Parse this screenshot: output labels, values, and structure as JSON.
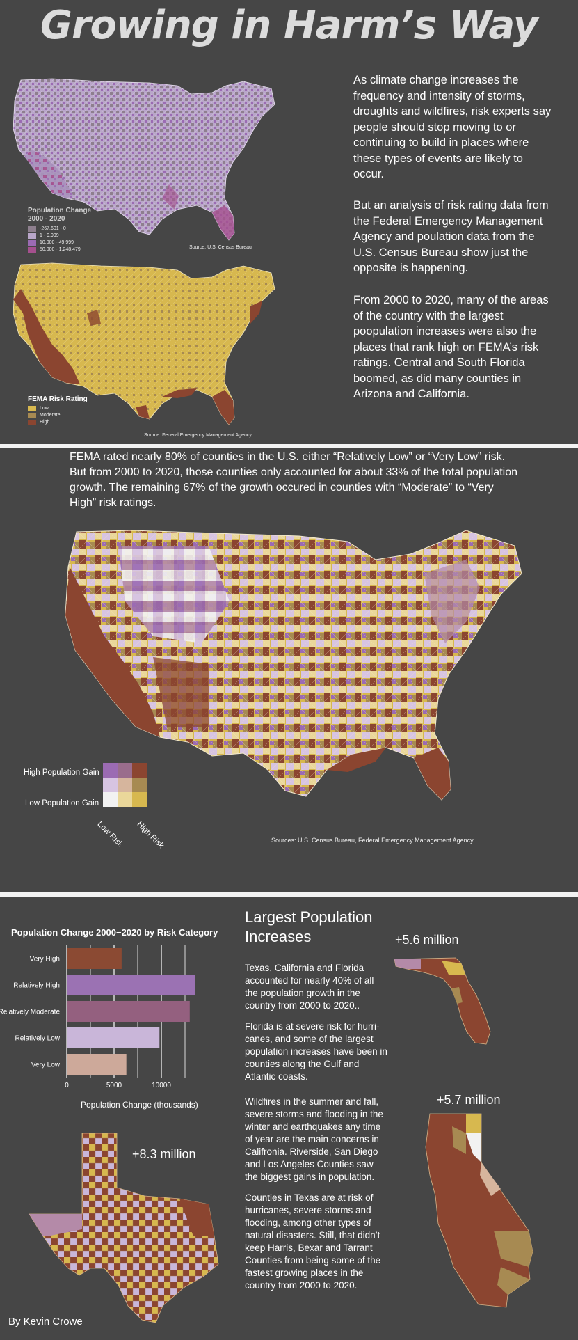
{
  "title": "Growing in Harm’s Way",
  "intro": {
    "p1": "As climate change increases the frequency and intensity of storms, droughts and wildfires, risk experts say people should stop moving to or continuing to build in places where these types of events are likely to occur.",
    "p2": "But an analysis of risk rating data from the Federal Emergency Management Agency and poulation data from the U.S. Census Bureau show just the opposite is happening.",
    "p3": "From 2000 to 2020, many of the areas of the country with the largest poopulation increases were also the places that rank high on FEMA’s risk ratings. Central and South Florida boomed, as did many counties in Arizona and California."
  },
  "map1": {
    "legend_title": "Population Change\n2000 - 2020",
    "legend_items": [
      {
        "label": "-267,601 - 0",
        "color": "#8e7f8e"
      },
      {
        "label": "1 - 9,999",
        "color": "#b9a6c9"
      },
      {
        "label": "10,000 - 49,999",
        "color": "#9b6bb3"
      },
      {
        "label": "50,000 - 1,248,479",
        "color": "#a5508e"
      }
    ],
    "source": "Source: U.S. Census Bureau"
  },
  "map2": {
    "legend_title": "FEMA Risk Rating",
    "legend_items": [
      {
        "label": "Low",
        "color": "#d7b84f"
      },
      {
        "label": "Moderate",
        "color": "#a78a52"
      },
      {
        "label": "High",
        "color": "#8b4530"
      }
    ],
    "source": "Source: Federal Emergency Management Agency"
  },
  "section2": {
    "text": "FEMA rated nearly 80% of counties in the U.S. either “Relatively Low” or “Very Low” risk. But from 2000 to 2020, those counties only accounted for about 33% of the total population growth. The remaining 67% of the growth occured in counties with “Moderate” to “Very High” risk ratings.",
    "legend_high": "High Population Gain",
    "legend_low": "Low Population Gain",
    "axis_low": "Low Risk",
    "axis_high": "High Risk",
    "bivariate_colors": [
      "#9b6bb3",
      "#9a6d8c",
      "#8b4530",
      "#d7c4e2",
      "#d6b59d",
      "#a78a52",
      "#f2f2f2",
      "#ead79a",
      "#d7b84f"
    ],
    "source": "Sources: U.S. Census Bureau, Federal Emergency Management Agency"
  },
  "section3": {
    "heading": "Largest Population Increases",
    "p1": "Texas, California and Florida accounted for nearly 40% of all the population growth in the country from 2000 to 2020..",
    "p2": "Florida is at severe risk for hurri-canes, and some of the largest population increases have been in counties along the Gulf and Atlantic coasts.",
    "p3": "Wildfires in the summer and fall, severe storms and flooding in the winter and earthquakes any time of year are the main concerns in Califronia. Riverside, San Diego and Los Angeles Counties saw the biggest gains in population.",
    "p4": "Counties in Texas are at risk of hurricanes, severe storms and flooding, among other types of natural disasters. Still, that didn’t keep Harris, Bexar and Tarrant Counties from being some of the fastest growing places in the country from 2000 to 2020.",
    "florida_label": "+5.6 million",
    "california_label": "+5.7 million",
    "texas_label": "+8.3 million",
    "byline": "By Kevin Crowe"
  },
  "chart_data": {
    "type": "bar",
    "orientation": "horizontal",
    "title": "Population Change 2000−2020 by Risk Category",
    "xlabel": "Population Change (thousands)",
    "categories": [
      "Very High",
      "Relatively High",
      "Relatively Moderate",
      "Relatively Low",
      "Very Low"
    ],
    "values": [
      5800,
      13600,
      13000,
      9800,
      6300
    ],
    "colors": [
      "#8b4a33",
      "#9b72b3",
      "#94607f",
      "#c9b6d9",
      "#cda99a"
    ],
    "xticks": [
      "0",
      "5000",
      "10000"
    ],
    "xlim": [
      0,
      15000
    ],
    "grid": true
  }
}
